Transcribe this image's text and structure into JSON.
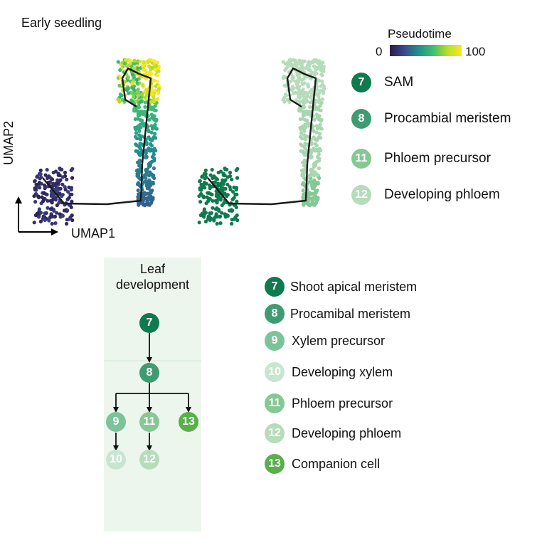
{
  "panel_title": "Early seedling",
  "colorbar": {
    "title": "Pseudotime",
    "min": "0",
    "max": "100"
  },
  "axes": {
    "x": "UMAP1",
    "y": "UMAP2"
  },
  "colors": {
    "c7": "#0e7a4e",
    "c8": "#3f9c72",
    "c9": "#7cc39a",
    "c10": "#c8e6cf",
    "c11": "#86c796",
    "c12": "#b6dcbb",
    "c13": "#5aae4c"
  },
  "legend_top": [
    {
      "num": "7",
      "label": "SAM",
      "color": "#0e7a4e"
    },
    {
      "num": "8",
      "label": "Procambial meristem",
      "color": "#3f9c72"
    },
    {
      "num": "11",
      "label": "Phloem precursor",
      "color": "#86c796"
    },
    {
      "num": "12",
      "label": "Developing phloem",
      "color": "#b6dcbb"
    }
  ],
  "leaf": {
    "title_line1": "Leaf",
    "title_line2": "development"
  },
  "tree_nodes": [
    {
      "num": "7",
      "color": "#0e7a4e"
    },
    {
      "num": "8",
      "color": "#3f9c72"
    },
    {
      "num": "9",
      "color": "#7cc39a"
    },
    {
      "num": "11",
      "color": "#86c796"
    },
    {
      "num": "13",
      "color": "#5aae4c"
    },
    {
      "num": "10",
      "color": "#c8e6cf"
    },
    {
      "num": "12",
      "color": "#b6dcbb"
    }
  ],
  "legend_bottom": [
    {
      "num": "7",
      "label": "Shoot apical meristem",
      "color": "#0e7a4e"
    },
    {
      "num": "8",
      "label": "Procamibal meristem",
      "color": "#3f9c72"
    },
    {
      "num": "9",
      "label": "Xylem precursor",
      "color": "#7cc39a"
    },
    {
      "num": "10",
      "label": "Developing xylem",
      "color": "#c8e6cf"
    },
    {
      "num": "11",
      "label": "Phloem precursor",
      "color": "#86c796"
    },
    {
      "num": "12",
      "label": "Developing phloem",
      "color": "#b6dcbb"
    },
    {
      "num": "13",
      "label": "Companion cell",
      "color": "#5aae4c"
    }
  ]
}
